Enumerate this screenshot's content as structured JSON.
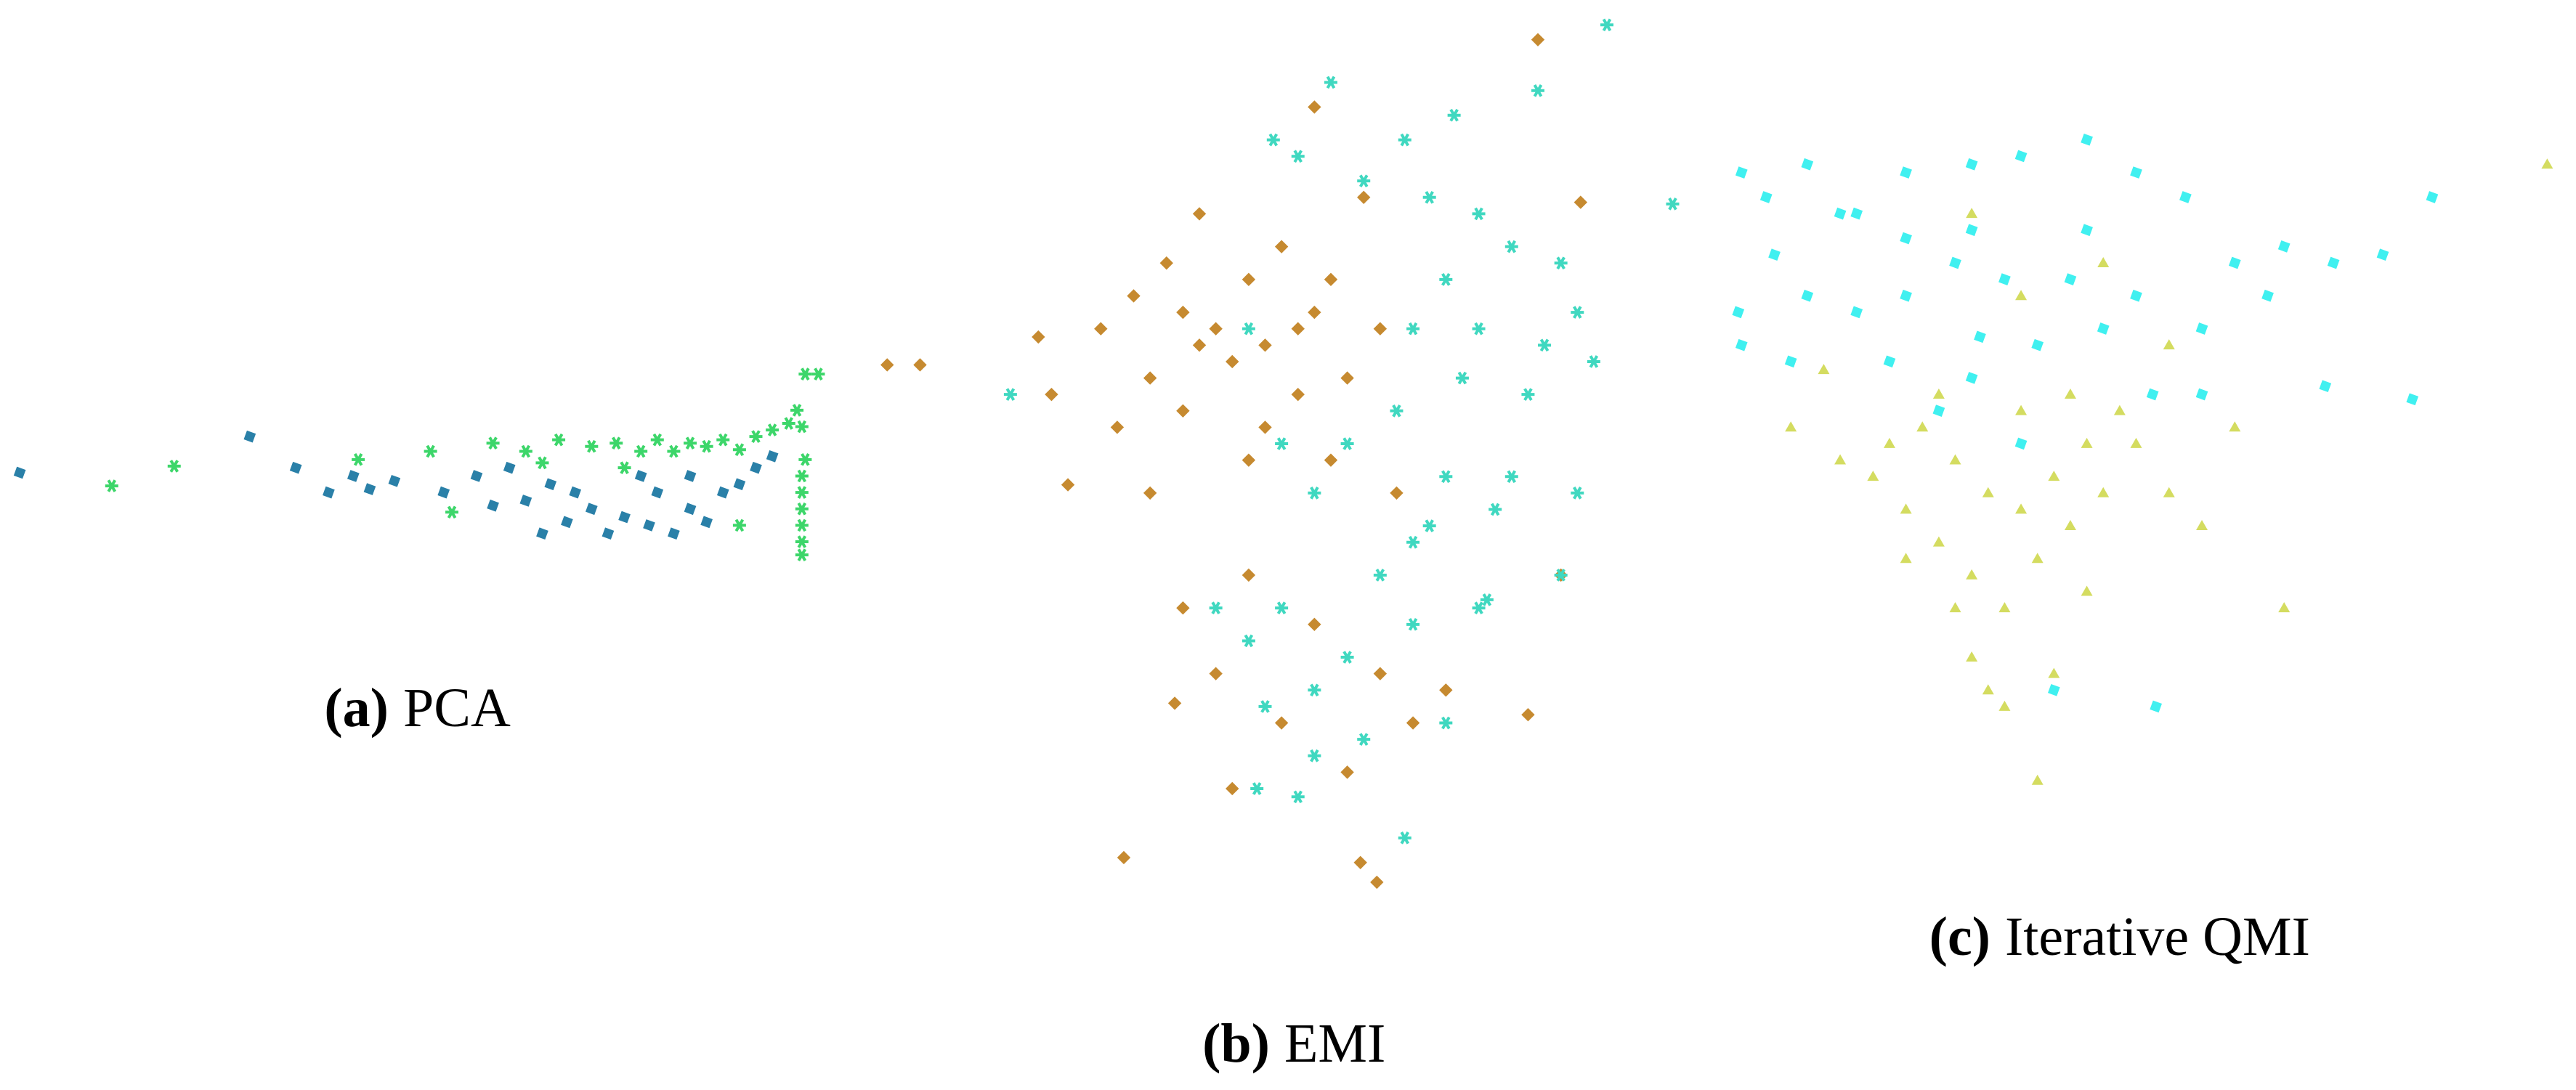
{
  "chart_data": [
    {
      "type": "scatter",
      "label": "(a)",
      "title": "PCA",
      "xlim": [
        0,
        500
      ],
      "ylim": [
        255,
        380
      ],
      "series": [
        {
          "color": "#2a80a8",
          "marker": "square",
          "x": [
            12,
            152,
            180,
            200,
            215,
            225,
            240,
            270,
            290,
            300,
            320,
            335,
            345,
            360,
            370,
            380,
            395,
            410,
            420,
            430,
            440,
            450,
            460,
            470,
            330,
            350,
            400,
            310,
            390,
            420
          ],
          "values": [
            312,
            334,
            315,
            300,
            310,
            302,
            307,
            300,
            310,
            292,
            295,
            305,
            282,
            290,
            275,
            285,
            280,
            275,
            290,
            282,
            300,
            305,
            315,
            322,
            275,
            300,
            300,
            315,
            310,
            310
          ]
        },
        {
          "color": "#3dd66a",
          "marker": "asterisk",
          "x": [
            68,
            106,
            218,
            262,
            300,
            320,
            340,
            360,
            375,
            390,
            400,
            410,
            420,
            430,
            440,
            450,
            460,
            470,
            480,
            485,
            490,
            498,
            488,
            488,
            488,
            490,
            450,
            275,
            380,
            330,
            488,
            488,
            488,
            488
          ],
          "values": [
            304,
            316,
            320,
            325,
            330,
            325,
            332,
            328,
            330,
            325,
            332,
            325,
            330,
            328,
            332,
            326,
            334,
            338,
            342,
            350,
            372,
            372,
            300,
            280,
            262,
            320,
            280,
            288,
            315,
            318,
            340,
            310,
            290,
            270
          ]
        }
      ]
    },
    {
      "type": "scatter",
      "label": "(b)",
      "title": "EMI",
      "xlim": [
        520,
        1020
      ],
      "ylim": [
        55,
        590
      ],
      "series": [
        {
          "color": "#c68a30",
          "marker": "diamond",
          "x": [
            540,
            560,
            632,
            640,
            650,
            670,
            690,
            700,
            710,
            720,
            730,
            740,
            750,
            760,
            770,
            780,
            790,
            800,
            810,
            820,
            830,
            840,
            850,
            700,
            720,
            740,
            760,
            780,
            800,
            820,
            840,
            860,
            880,
            930,
            950,
            684,
            828,
            838,
            715,
            750,
            800,
            936,
            962,
            760,
            680,
            730,
            770,
            790,
            810,
            720
          ],
          "values": [
            378,
            378,
            395,
            360,
            305,
            400,
            420,
            370,
            440,
            350,
            470,
            400,
            380,
            430,
            340,
            450,
            360,
            410,
            320,
            370,
            480,
            400,
            300,
            300,
            230,
            190,
            250,
            160,
            220,
            130,
            190,
            160,
            180,
            165,
            250,
            78,
            75,
            63,
            172,
            120,
            535,
            576,
            477,
            320,
            340,
            390,
            390,
            400,
            430,
            410
          ]
        },
        {
          "color": "#40d8c0",
          "marker": "asterisk",
          "x": [
            978,
            936,
            885,
            855,
            810,
            775,
            790,
            830,
            870,
            900,
            920,
            950,
            880,
            860,
            900,
            940,
            960,
            1018,
            970,
            930,
            890,
            850,
            820,
            960,
            910,
            880,
            860,
            840,
            900,
            950,
            860,
            820,
            800,
            780,
            760,
            740,
            770,
            800,
            830,
            855,
            790,
            765,
            880,
            905,
            615,
            800,
            870,
            920,
            780,
            760
          ],
          "values": [
            585,
            545,
            530,
            515,
            550,
            515,
            505,
            490,
            480,
            470,
            450,
            440,
            430,
            400,
            400,
            390,
            410,
            476,
            380,
            360,
            370,
            350,
            330,
            300,
            290,
            310,
            270,
            250,
            230,
            250,
            220,
            200,
            180,
            230,
            210,
            230,
            170,
            140,
            150,
            90,
            115,
            120,
            160,
            235,
            360,
            300,
            280,
            310,
            330,
            400
          ]
        }
      ]
    },
    {
      "type": "scatter",
      "label": "(c)",
      "title": "Iterative QMI",
      "xlim": [
        1040,
        1560
      ],
      "ylim": [
        105,
        520
      ],
      "series": [
        {
          "color": "#40f0f0",
          "marker": "square",
          "x": [
            1060,
            1075,
            1100,
            1130,
            1160,
            1200,
            1230,
            1270,
            1300,
            1330,
            1360,
            1390,
            1420,
            1450,
            1480,
            1415,
            1468,
            1340,
            1300,
            1260,
            1220,
            1190,
            1160,
            1130,
            1100,
            1080,
            1060,
            1058,
            1090,
            1150,
            1200,
            1240,
            1280,
            1310,
            1230,
            1250,
            1312,
            1180,
            1120,
            1200,
            1270,
            1340,
            1380,
            1160,
            1205
          ],
          "values": [
            495,
            480,
            500,
            470,
            495,
            500,
            505,
            515,
            495,
            480,
            440,
            450,
            440,
            445,
            480,
            365,
            357,
            400,
            420,
            430,
            430,
            440,
            420,
            410,
            420,
            445,
            390,
            410,
            380,
            380,
            370,
            390,
            400,
            360,
            330,
            180,
            170,
            350,
            470,
            460,
            460,
            360,
            420,
            455,
            395
          ]
        },
        {
          "color": "#d4dc60",
          "marker": "triangle",
          "x": [
            1550,
            1200,
            1280,
            1230,
            1110,
            1090,
            1120,
            1140,
            1160,
            1180,
            1200,
            1220,
            1240,
            1260,
            1280,
            1300,
            1320,
            1340,
            1190,
            1210,
            1230,
            1250,
            1270,
            1290,
            1170,
            1150,
            1200,
            1220,
            1240,
            1250,
            1210,
            1390,
            1320,
            1360,
            1230,
            1260,
            1180,
            1270,
            1190,
            1160
          ],
          "values": [
            500,
            470,
            440,
            420,
            375,
            340,
            320,
            310,
            290,
            270,
            250,
            230,
            260,
            280,
            300,
            330,
            300,
            280,
            320,
            300,
            290,
            310,
            330,
            350,
            340,
            330,
            200,
            170,
            125,
            190,
            180,
            230,
            390,
            340,
            350,
            360,
            360,
            240,
            230,
            260
          ]
        }
      ]
    }
  ]
}
